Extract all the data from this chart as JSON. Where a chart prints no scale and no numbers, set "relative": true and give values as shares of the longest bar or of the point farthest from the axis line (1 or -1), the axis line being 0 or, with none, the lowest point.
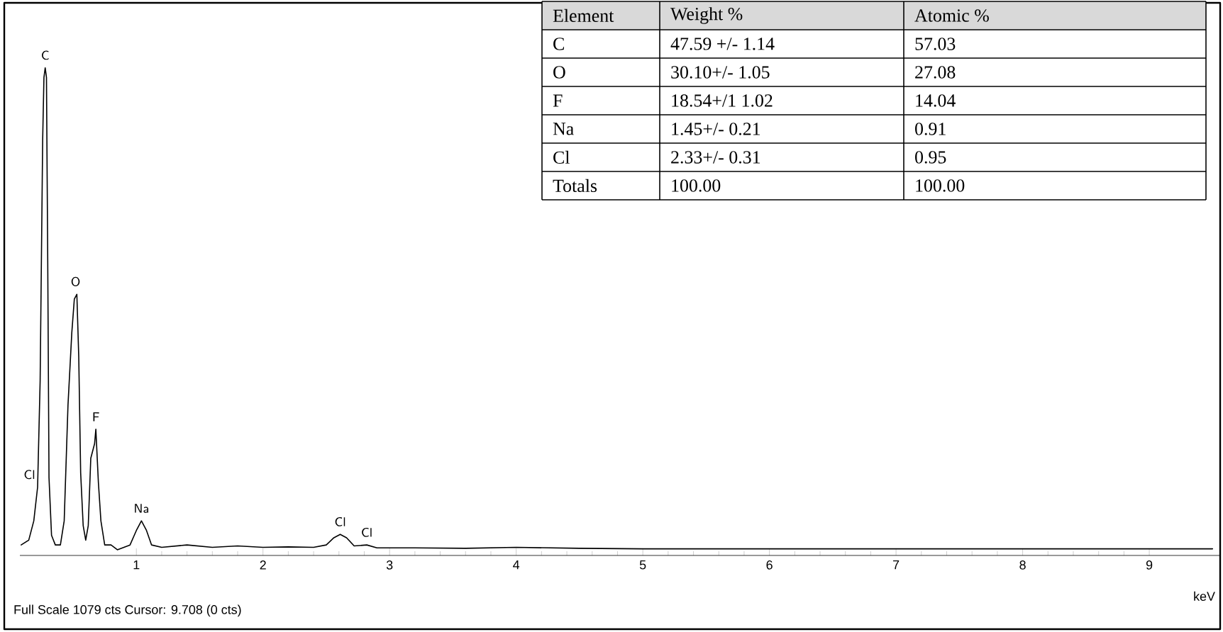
{
  "chart_data": {
    "type": "line",
    "xlabel": "keV",
    "relative": true,
    "color": "#000000",
    "xlim": [
      0.08,
      9.56
    ],
    "xticks": [
      1,
      2,
      3,
      4,
      5,
      6,
      7,
      8,
      9
    ],
    "grid": false,
    "x": [
      0.09,
      0.15,
      0.19,
      0.22,
      0.24,
      0.26,
      0.27,
      0.28,
      0.29,
      0.3,
      0.31,
      0.33,
      0.36,
      0.4,
      0.43,
      0.46,
      0.49,
      0.51,
      0.53,
      0.545,
      0.56,
      0.58,
      0.6,
      0.62,
      0.64,
      0.67,
      0.68,
      0.7,
      0.72,
      0.75,
      0.8,
      0.85,
      0.95,
      1.0,
      1.04,
      1.08,
      1.12,
      1.2,
      1.4,
      1.6,
      1.8,
      2.0,
      2.2,
      2.4,
      2.5,
      2.56,
      2.61,
      2.66,
      2.72,
      2.82,
      2.9,
      3.2,
      3.6,
      4.0,
      4.5,
      5.0,
      6.0,
      7.0,
      8.0,
      9.0,
      9.5
    ],
    "values": [
      0.01,
      0.02,
      0.06,
      0.13,
      0.35,
      0.85,
      0.98,
      1.0,
      0.98,
      0.6,
      0.15,
      0.03,
      0.01,
      0.01,
      0.06,
      0.3,
      0.45,
      0.52,
      0.53,
      0.4,
      0.16,
      0.05,
      0.02,
      0.05,
      0.19,
      0.22,
      0.25,
      0.14,
      0.06,
      0.01,
      0.01,
      0.0,
      0.01,
      0.04,
      0.06,
      0.04,
      0.01,
      0.005,
      0.01,
      0.005,
      0.008,
      0.005,
      0.006,
      0.005,
      0.01,
      0.025,
      0.032,
      0.025,
      0.008,
      0.01,
      0.004,
      0.004,
      0.003,
      0.005,
      0.003,
      0.002,
      0.002,
      0.002,
      0.002,
      0.002,
      0.002
    ],
    "annotations": [
      {
        "text": "C",
        "x": 0.28,
        "y": 1.0
      },
      {
        "text": "O",
        "x": 0.52,
        "y": 0.53
      },
      {
        "text": "F",
        "x": 0.68,
        "y": 0.25
      },
      {
        "text": "Cl",
        "x": 0.22,
        "y": 0.13
      },
      {
        "text": "Na",
        "x": 1.04,
        "y": 0.06
      },
      {
        "text": "Cl",
        "x": 2.61,
        "y": 0.032
      },
      {
        "text": "Cl",
        "x": 2.82,
        "y": 0.01
      },
      "Full Scale 1079 cts Cursor: 9.708  (0 cts)",
      "Element",
      "Weight %",
      "Atomic %",
      "C",
      "47.59 +/- 1.14",
      "57.03",
      "O",
      "30.10+/- 1.05",
      "27.08",
      "F",
      "18.54+/1 1.02",
      "14.04",
      "Na",
      "1.45+/- 0.21",
      "0.91",
      "Cl",
      "2.33+/- 0.31",
      "0.95",
      "Totals",
      "100.00",
      "100.00"
    ]
  }
}
